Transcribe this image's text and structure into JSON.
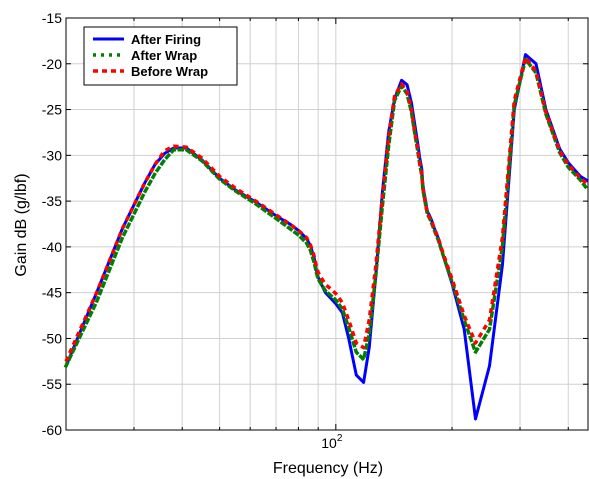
{
  "chart_data": {
    "type": "line",
    "title": "",
    "xlabel": "Frequency (Hz)",
    "ylabel": "Gain dB (g/lbf)",
    "xscale": "log",
    "xlim": [
      20,
      450
    ],
    "ylim": [
      -60,
      -15
    ],
    "grid": true,
    "legend_position": "top-left",
    "x_tick_labels": [
      {
        "base": "10",
        "exp": "2",
        "value": 100
      }
    ],
    "y_ticks": [
      -15,
      -20,
      -25,
      -30,
      -35,
      -40,
      -45,
      -50,
      -55,
      -60
    ],
    "series": [
      {
        "name": "After Firing",
        "color": "#0000ff",
        "style": "solid",
        "x": [
          20,
          24,
          28,
          32,
          34,
          36,
          38,
          41,
          45,
          50,
          55,
          62,
          70,
          76,
          80,
          84,
          86,
          88,
          89,
          90,
          92,
          94,
          97,
          100,
          104,
          108,
          113,
          118,
          122,
          127,
          132,
          137,
          142,
          148,
          153,
          157,
          160,
          163,
          165,
          167,
          168,
          169,
          170,
          171,
          172,
          173,
          175,
          177,
          180,
          184,
          190,
          200,
          215,
          230,
          250,
          270,
          290,
          310,
          330,
          350,
          380,
          400,
          430,
          450
        ],
        "y": [
          -53,
          -45,
          -38,
          -33,
          -31,
          -29.8,
          -29.2,
          -29.2,
          -30.5,
          -32.5,
          -33.8,
          -35.1,
          -36.6,
          -37.5,
          -38.2,
          -39.1,
          -39.9,
          -41.3,
          -42.5,
          -43.3,
          -44.2,
          -45,
          -45.6,
          -46.2,
          -47.2,
          -50,
          -54,
          -54.8,
          -51,
          -43,
          -34,
          -27.5,
          -23.8,
          -21.8,
          -22.3,
          -24.3,
          -26.5,
          -28.7,
          -30.3,
          -31.5,
          -33.1,
          -33.9,
          -34.5,
          -35.1,
          -35.8,
          -36.2,
          -36.6,
          -37.1,
          -38,
          -39,
          -41,
          -44,
          -49,
          -58.8,
          -53,
          -42,
          -25,
          -19,
          -20,
          -25,
          -29.3,
          -30.8,
          -32.3,
          -32.8
        ]
      },
      {
        "name": "After Wrap",
        "color": "#008000",
        "style": "dotted",
        "x": [
          20,
          24,
          28,
          32,
          34,
          36,
          38,
          41,
          45,
          50,
          55,
          62,
          70,
          76,
          80,
          84,
          86,
          88,
          89,
          90,
          92,
          94,
          97,
          100,
          104,
          108,
          113,
          118,
          122,
          127,
          132,
          137,
          142,
          148,
          153,
          157,
          160,
          163,
          165,
          167,
          168,
          169,
          170,
          171,
          172,
          173,
          175,
          177,
          180,
          184,
          190,
          200,
          215,
          230,
          250,
          270,
          290,
          310,
          330,
          350,
          380,
          400,
          430,
          450
        ],
        "y": [
          -53,
          -46,
          -39,
          -34,
          -32,
          -30.5,
          -29.4,
          -29.4,
          -30.6,
          -32.6,
          -33.9,
          -35.3,
          -36.9,
          -38,
          -38.7,
          -39.6,
          -40.4,
          -41.8,
          -42.8,
          -43.5,
          -44.2,
          -44.8,
          -45.3,
          -45.8,
          -46.8,
          -48.8,
          -51.5,
          -52.3,
          -49.5,
          -43,
          -35.5,
          -29,
          -24,
          -22.4,
          -23.3,
          -25.3,
          -27.5,
          -29.5,
          -31,
          -32.2,
          -33.6,
          -34.3,
          -34.9,
          -35.5,
          -36.1,
          -36.5,
          -36.9,
          -37.4,
          -38.2,
          -39.2,
          -41,
          -43.8,
          -48,
          -51.5,
          -49,
          -40,
          -24.5,
          -19.5,
          -21,
          -25.5,
          -29.7,
          -31.3,
          -32.7,
          -33.8
        ]
      },
      {
        "name": "Before Wrap",
        "color": "#ff0000",
        "style": "dashed",
        "x": [
          20,
          24,
          28,
          32,
          34,
          36,
          38,
          41,
          45,
          50,
          55,
          62,
          70,
          76,
          80,
          84,
          86,
          88,
          89,
          90,
          92,
          94,
          97,
          100,
          104,
          108,
          113,
          118,
          122,
          127,
          132,
          137,
          142,
          148,
          153,
          157,
          160,
          163,
          165,
          167,
          168,
          169,
          170,
          171,
          172,
          173,
          175,
          177,
          180,
          184,
          190,
          200,
          215,
          230,
          250,
          270,
          290,
          310,
          330,
          350,
          380,
          400,
          430,
          450
        ],
        "y": [
          -52.5,
          -45,
          -38,
          -33,
          -31,
          -29.5,
          -29,
          -29.1,
          -30.3,
          -32.3,
          -33.6,
          -35,
          -36.5,
          -37.5,
          -38.2,
          -39,
          -39.8,
          -41.1,
          -42.1,
          -42.8,
          -43.5,
          -44.1,
          -44.6,
          -45.1,
          -46.1,
          -48,
          -50.5,
          -51,
          -48,
          -42,
          -34.5,
          -28,
          -23.5,
          -22.2,
          -23,
          -25,
          -27.3,
          -29.3,
          -30.9,
          -32.1,
          -33.5,
          -34.2,
          -34.8,
          -35.4,
          -36,
          -36.4,
          -36.8,
          -37.2,
          -38,
          -39,
          -40.8,
          -43.5,
          -47.5,
          -50.5,
          -48,
          -39,
          -24,
          -19.3,
          -20.8,
          -25.3,
          -29.5,
          -31,
          -32.5,
          -33.2
        ]
      }
    ]
  }
}
